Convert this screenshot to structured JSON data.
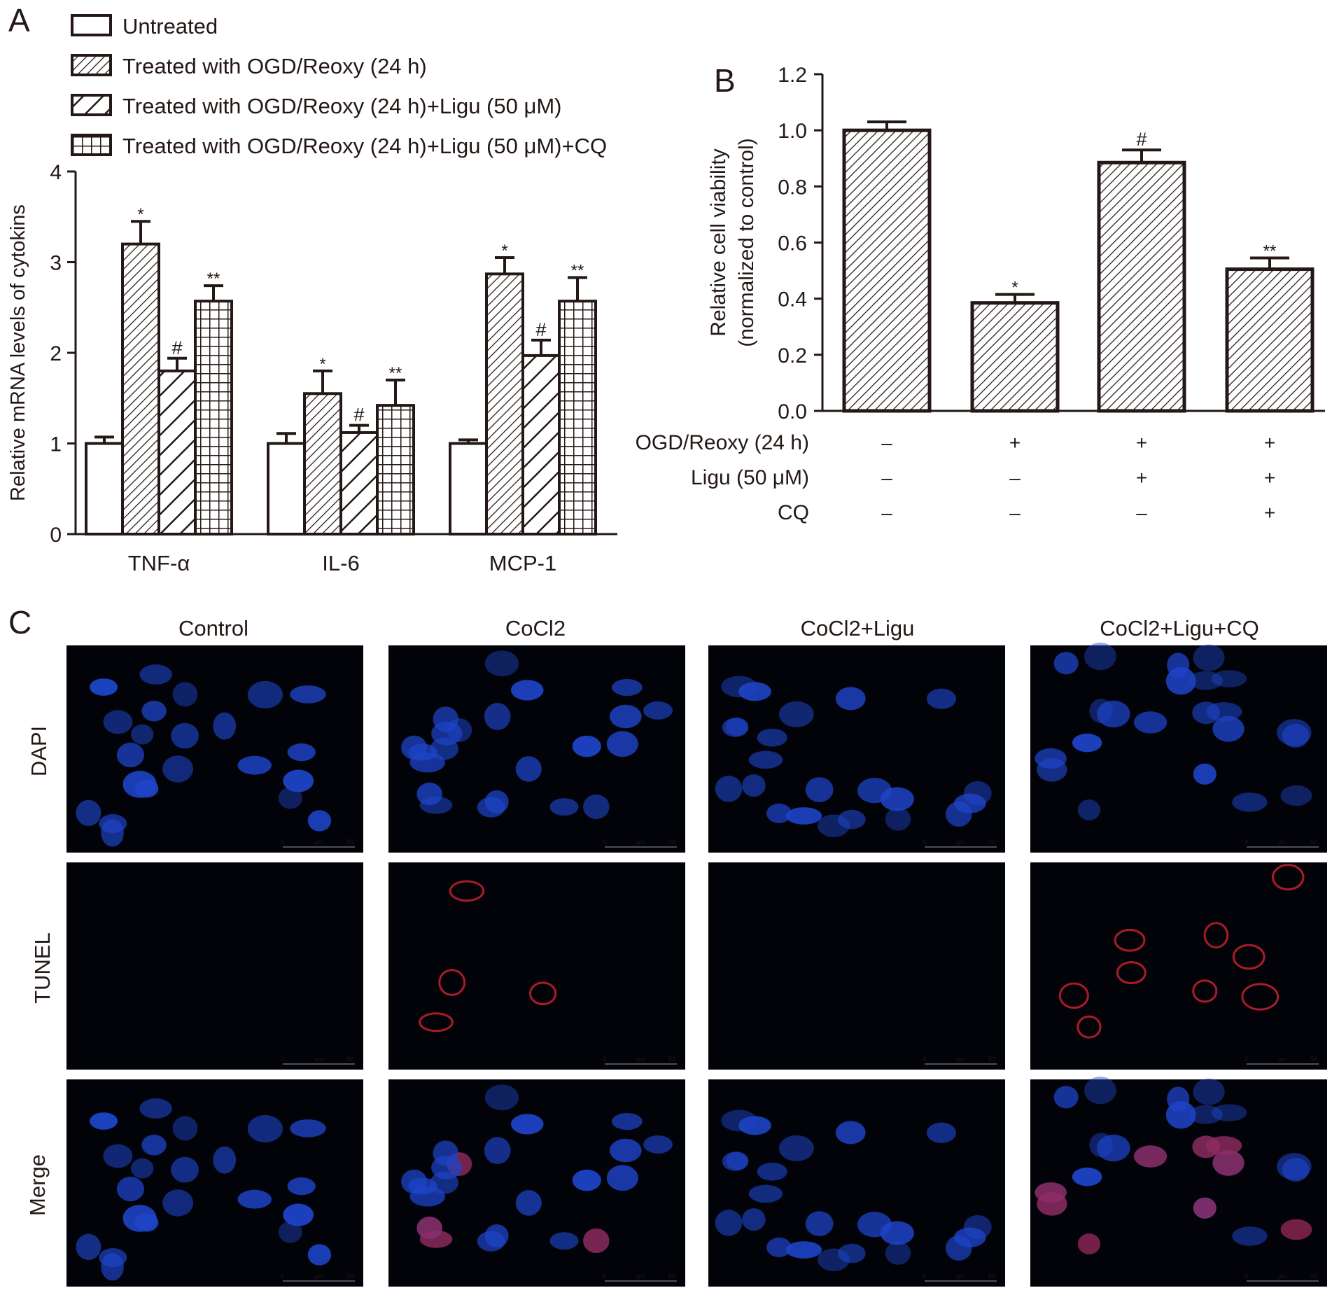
{
  "panels": {
    "a": "A",
    "b": "B",
    "c": "C"
  },
  "colors": {
    "ink": "#231815",
    "bar_fill": "#ffffff",
    "dapi": "#1e44c8",
    "tunel": "#c8202f"
  },
  "chart_data": [
    {
      "type": "bar",
      "panel": "A",
      "ylabel": "Relative mRNA levels of cytokins",
      "xlabel": "",
      "ylim": [
        0,
        4
      ],
      "yticks": [
        "0",
        "1",
        "2",
        "3",
        "4"
      ],
      "categories": [
        "TNF-α",
        "IL-6",
        "MCP-1"
      ],
      "legend_position": "top-left",
      "series": [
        {
          "name": "Untreated",
          "pattern": "none",
          "values": [
            1.0,
            1.0,
            1.0
          ],
          "errors": [
            0.07,
            0.11,
            0.04
          ],
          "annotations": [
            "",
            "",
            ""
          ]
        },
        {
          "name": "Treated with OGD/Reoxy (24 h)",
          "pattern": "fine-hatch",
          "values": [
            3.2,
            1.55,
            2.87
          ],
          "errors": [
            0.25,
            0.25,
            0.18
          ],
          "annotations": [
            "*",
            "*",
            "*"
          ]
        },
        {
          "name": "Treated with OGD/Reoxy (24 h)+Ligu (50 μM)",
          "pattern": "wide-hatch",
          "values": [
            1.8,
            1.12,
            1.97
          ],
          "errors": [
            0.14,
            0.08,
            0.17
          ],
          "annotations": [
            "#",
            "#",
            "#"
          ]
        },
        {
          "name": "Treated with OGD/Reoxy (24 h)+Ligu (50 μM)+CQ",
          "pattern": "grid",
          "values": [
            2.57,
            1.42,
            2.57
          ],
          "errors": [
            0.17,
            0.28,
            0.26
          ],
          "annotations": [
            "**",
            "**",
            "**"
          ]
        }
      ]
    },
    {
      "type": "bar",
      "panel": "B",
      "ylabel": "Relative cell viability",
      "ylabel2": "(normalized to control)",
      "ylim": [
        0,
        1.2
      ],
      "yticks": [
        "0.0",
        "0.2",
        "0.4",
        "0.6",
        "0.8",
        "1.0",
        "1.2"
      ],
      "values": [
        1.0,
        0.385,
        0.885,
        0.505
      ],
      "errors": [
        0.03,
        0.03,
        0.045,
        0.04
      ],
      "annotations": [
        "",
        "*",
        "#",
        "**"
      ],
      "condition_rows": [
        {
          "label": "OGD/Reoxy (24 h)",
          "marks": [
            "–",
            "+",
            "+",
            "+"
          ]
        },
        {
          "label": "Ligu (50 μM)",
          "marks": [
            "–",
            "–",
            "+",
            "+"
          ]
        },
        {
          "label": "CQ",
          "marks": [
            "–",
            "–",
            "–",
            "+"
          ]
        }
      ]
    }
  ],
  "micrographs": {
    "columns": [
      "Control",
      "CoCl2",
      "CoCl2+Ligu",
      "CoCl2+Ligu+CQ"
    ],
    "rows": [
      "DAPI",
      "TUNEL",
      "Merge"
    ],
    "scale_bar": {
      "start": "0",
      "unit": "μm",
      "end": "50"
    },
    "tunel_positive_cells": [
      0,
      4,
      0,
      9
    ]
  }
}
